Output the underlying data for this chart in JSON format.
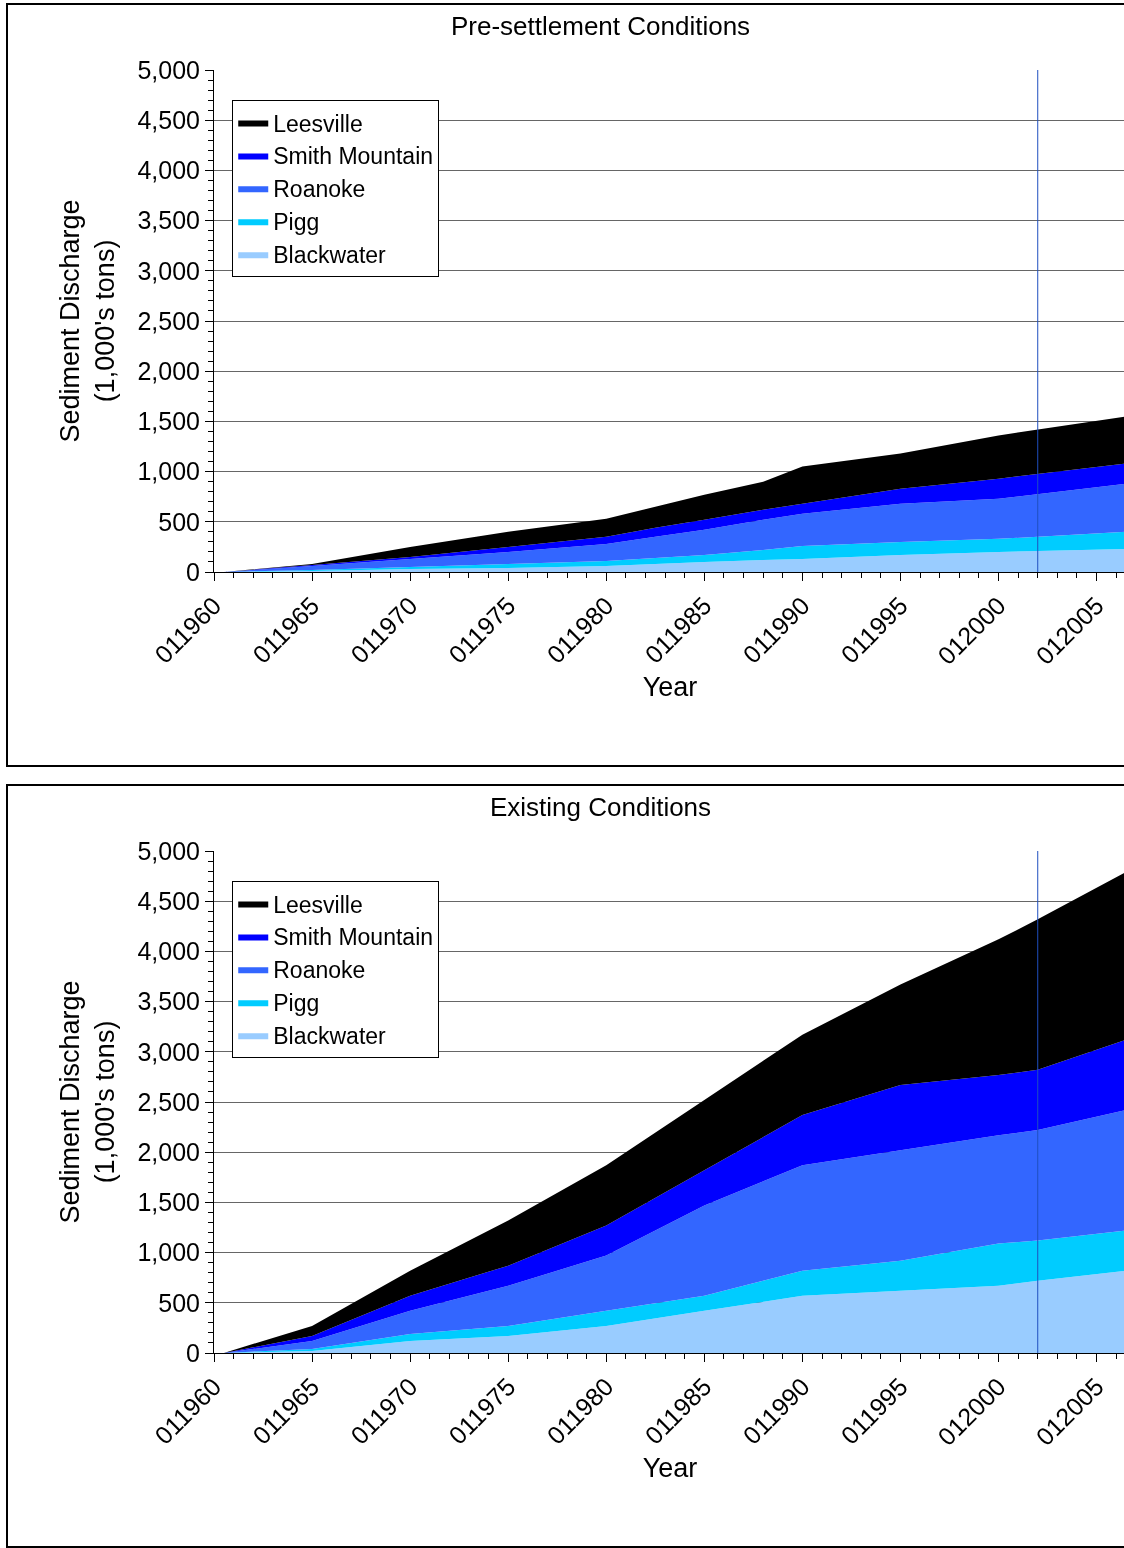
{
  "chart_data": [
    {
      "type": "area",
      "title": "Pre-settlement Conditions",
      "xlabel": "Year",
      "ylabel": "Sediment Discharge\n(1,000's tons)",
      "stacked": true,
      "legend": "top left",
      "grid": "y",
      "x": [
        11960.5,
        11965,
        11970,
        11975,
        11980,
        11982.5,
        11985,
        11988,
        11990,
        11995,
        12000,
        12006.5
      ],
      "xlim": [
        11960,
        12006.5
      ],
      "xticks": [
        {
          "value": 11960,
          "label": "011960"
        },
        {
          "value": 11965,
          "label": "011965"
        },
        {
          "value": 11970,
          "label": "011970"
        },
        {
          "value": 11975,
          "label": "011975"
        },
        {
          "value": 11980,
          "label": "011980"
        },
        {
          "value": 11985,
          "label": "011985"
        },
        {
          "value": 11990,
          "label": "011990"
        },
        {
          "value": 11995,
          "label": "011995"
        },
        {
          "value": 12000,
          "label": "012000"
        },
        {
          "value": 12005,
          "label": "012005"
        }
      ],
      "ylim": [
        0,
        5000
      ],
      "yticks": [
        {
          "value": 0,
          "label": "0"
        },
        {
          "value": 500,
          "label": "500"
        },
        {
          "value": 1000,
          "label": "1,000"
        },
        {
          "value": 1500,
          "label": "1,500"
        },
        {
          "value": 2000,
          "label": "2,000"
        },
        {
          "value": 2500,
          "label": "2,500"
        },
        {
          "value": 3000,
          "label": "3,000"
        },
        {
          "value": 3500,
          "label": "3,500"
        },
        {
          "value": 4000,
          "label": "4,000"
        },
        {
          "value": 4500,
          "label": "4,500"
        },
        {
          "value": 5000,
          "label": "5,000"
        }
      ],
      "ref_lines": [
        {
          "axis": "x",
          "value": 12002,
          "color": "#1f4fbf"
        }
      ],
      "series": [
        {
          "name": "Blackwater",
          "color": "#99ccff",
          "values": [
            0,
            10,
            30,
            40,
            60,
            80,
            100,
            120,
            130,
            170,
            200,
            230
          ]
        },
        {
          "name": "Pigg",
          "color": "#00ccff",
          "values": [
            0,
            10,
            20,
            40,
            50,
            60,
            70,
            100,
            130,
            130,
            130,
            170
          ]
        },
        {
          "name": "Roanoke",
          "color": "#3366ff",
          "values": [
            0,
            40,
            80,
            120,
            170,
            210,
            250,
            300,
            320,
            380,
            400,
            480
          ]
        },
        {
          "name": "Smith Mountain",
          "color": "#0000ff",
          "values": [
            0,
            10,
            20,
            50,
            70,
            90,
            100,
            100,
            100,
            150,
            200,
            200
          ]
        },
        {
          "name": "Leesville",
          "color": "#000000",
          "values": [
            0,
            10,
            100,
            150,
            180,
            210,
            250,
            280,
            370,
            350,
            430,
            470
          ]
        }
      ]
    },
    {
      "type": "area",
      "title": "Existing Conditions",
      "xlabel": "Year",
      "ylabel": "Sediment Discharge\n(1,000's tons)",
      "stacked": true,
      "legend": "top left",
      "grid": "y",
      "x": [
        11960.5,
        11965,
        11970,
        11975,
        11980,
        11985,
        11990,
        11995,
        12000,
        12002,
        12006.5
      ],
      "xlim": [
        11960,
        12006.5
      ],
      "xticks": [
        {
          "value": 11960,
          "label": "011960"
        },
        {
          "value": 11965,
          "label": "011965"
        },
        {
          "value": 11970,
          "label": "011970"
        },
        {
          "value": 11975,
          "label": "011975"
        },
        {
          "value": 11980,
          "label": "011980"
        },
        {
          "value": 11985,
          "label": "011985"
        },
        {
          "value": 11990,
          "label": "011990"
        },
        {
          "value": 11995,
          "label": "011995"
        },
        {
          "value": 12000,
          "label": "012000"
        },
        {
          "value": 12005,
          "label": "012005"
        }
      ],
      "ylim": [
        0,
        5000
      ],
      "yticks": [
        {
          "value": 0,
          "label": "0"
        },
        {
          "value": 500,
          "label": "500"
        },
        {
          "value": 1000,
          "label": "1,000"
        },
        {
          "value": 1500,
          "label": "1,500"
        },
        {
          "value": 2000,
          "label": "2,000"
        },
        {
          "value": 2500,
          "label": "2,500"
        },
        {
          "value": 3000,
          "label": "3,000"
        },
        {
          "value": 3500,
          "label": "3,500"
        },
        {
          "value": 4000,
          "label": "4,000"
        },
        {
          "value": 4500,
          "label": "4,500"
        },
        {
          "value": 5000,
          "label": "5,000"
        }
      ],
      "ref_lines": [
        {
          "axis": "x",
          "value": 12002,
          "color": "#1f4fbf"
        }
      ],
      "series": [
        {
          "name": "Blackwater",
          "color": "#99ccff",
          "values": [
            0,
            20,
            120,
            170,
            270,
            420,
            570,
            620,
            670,
            720,
            820
          ]
        },
        {
          "name": "Pigg",
          "color": "#00ccff",
          "values": [
            0,
            20,
            70,
            100,
            150,
            150,
            250,
            300,
            420,
            400,
            400
          ]
        },
        {
          "name": "Roanoke",
          "color": "#3366ff",
          "values": [
            0,
            80,
            230,
            400,
            550,
            900,
            1050,
            1100,
            1080,
            1100,
            1200
          ]
        },
        {
          "name": "Smith Mountain",
          "color": "#0000ff",
          "values": [
            0,
            50,
            150,
            200,
            300,
            350,
            500,
            650,
            600,
            600,
            700
          ]
        },
        {
          "name": "Leesville",
          "color": "#000000",
          "values": [
            0,
            100,
            250,
            450,
            600,
            700,
            800,
            1000,
            1350,
            1500,
            1670
          ]
        }
      ]
    }
  ]
}
